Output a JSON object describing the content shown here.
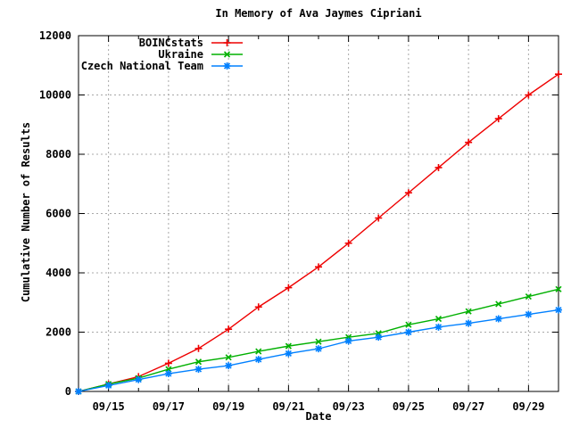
{
  "title": "In Memory of Ava Jaymes Cipriani",
  "chart_data": {
    "type": "line",
    "title": "In Memory of Ava Jaymes Cipriani",
    "xlabel": "Date",
    "ylabel": "Cumulative Number of Results",
    "ylim": [
      0,
      12000
    ],
    "y_ticks": [
      0,
      2000,
      4000,
      6000,
      8000,
      10000,
      12000
    ],
    "x_dates": [
      "09/14",
      "09/15",
      "09/16",
      "09/17",
      "09/18",
      "09/19",
      "09/20",
      "09/21",
      "09/22",
      "09/23",
      "09/24",
      "09/25",
      "09/26",
      "09/27",
      "09/28",
      "09/29",
      "09/30"
    ],
    "x_labeled_tick_indices": [
      1,
      3,
      5,
      7,
      9,
      11,
      13,
      15
    ],
    "x_tick_labels": [
      "09/15",
      "09/17",
      "09/19",
      "09/21",
      "09/23",
      "09/25",
      "09/27",
      "09/29"
    ],
    "grid": true,
    "grid_style": "dashed",
    "legend_position": "top-left-inside",
    "series": [
      {
        "name": "BOINCstats",
        "color": "#ee0000",
        "marker": "plus",
        "values": [
          0,
          250,
          500,
          950,
          1450,
          2100,
          2850,
          3500,
          4200,
          5000,
          5850,
          6700,
          7550,
          8400,
          9200,
          10000,
          10700
        ]
      },
      {
        "name": "Ukraine",
        "color": "#00b000",
        "marker": "x",
        "values": [
          0,
          250,
          450,
          750,
          1000,
          1150,
          1350,
          1530,
          1680,
          1830,
          1960,
          2250,
          2450,
          2700,
          2950,
          3200,
          3450
        ]
      },
      {
        "name": "Czech National Team",
        "color": "#0080ff",
        "marker": "asterisk",
        "values": [
          0,
          200,
          400,
          600,
          750,
          870,
          1080,
          1280,
          1440,
          1700,
          1830,
          2000,
          2170,
          2300,
          2450,
          2600,
          2750
        ]
      }
    ]
  },
  "colors": {
    "background": "#ffffff",
    "axis": "#000000",
    "grid": "#a8a8a8",
    "text": "#000000"
  }
}
